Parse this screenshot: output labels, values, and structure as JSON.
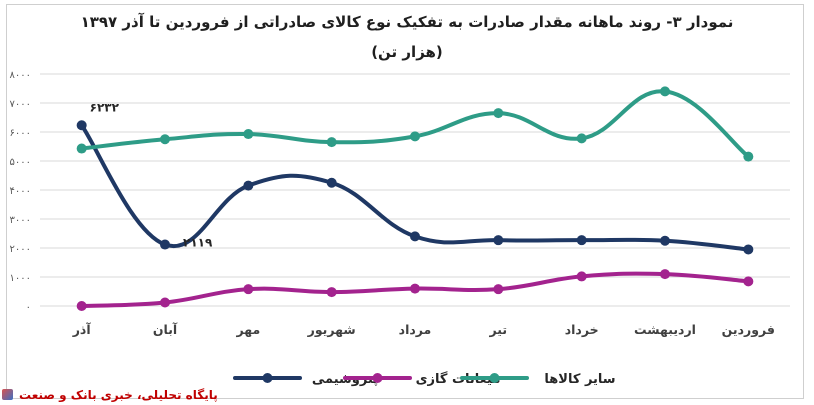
{
  "chart_data": {
    "type": "line",
    "title_line1": "نمودار ۳- روند ماهانه مقدار صادرات به تفکیک نوع کالای صادراتی از فروردین تا آذر ۱۳۹۷",
    "title_line2": "(هزار تن)",
    "categories": [
      "فروردین",
      "اردیبهشت",
      "خرداد",
      "تیر",
      "مرداد",
      "شهریور",
      "مهر",
      "آبان",
      "آذر"
    ],
    "y_ticks": [
      "۰",
      "۱۰۰۰",
      "۲۰۰۰",
      "۳۰۰۰",
      "۴۰۰۰",
      "۵۰۰۰",
      "۶۰۰۰",
      "۷۰۰۰",
      "۸۰۰۰"
    ],
    "ylim": [
      0,
      8000
    ],
    "grid": true,
    "legend_position": "bottom",
    "series": [
      {
        "name": "پتروشیمی",
        "color": "#1f3864",
        "values": [
          1950,
          2250,
          2270,
          2270,
          2400,
          4250,
          4150,
          2119,
          6232
        ]
      },
      {
        "name": "میعانات گازی",
        "color": "#a3238e",
        "values": [
          850,
          1100,
          1020,
          580,
          600,
          480,
          580,
          120,
          0
        ]
      },
      {
        "name": "سایر کالاها",
        "color": "#2e9c87",
        "values": [
          5150,
          7400,
          5780,
          6650,
          5850,
          5650,
          5930,
          5750,
          5430
        ]
      }
    ],
    "data_labels": [
      {
        "series": 0,
        "index": 8,
        "text": "۶۲۳۲"
      },
      {
        "series": 0,
        "index": 7,
        "text": "۲۱۱۹"
      }
    ]
  },
  "watermark": {
    "text": "پایگاه تحلیلی، خبری بانک و صنعت",
    "icon": "logo-icon"
  }
}
